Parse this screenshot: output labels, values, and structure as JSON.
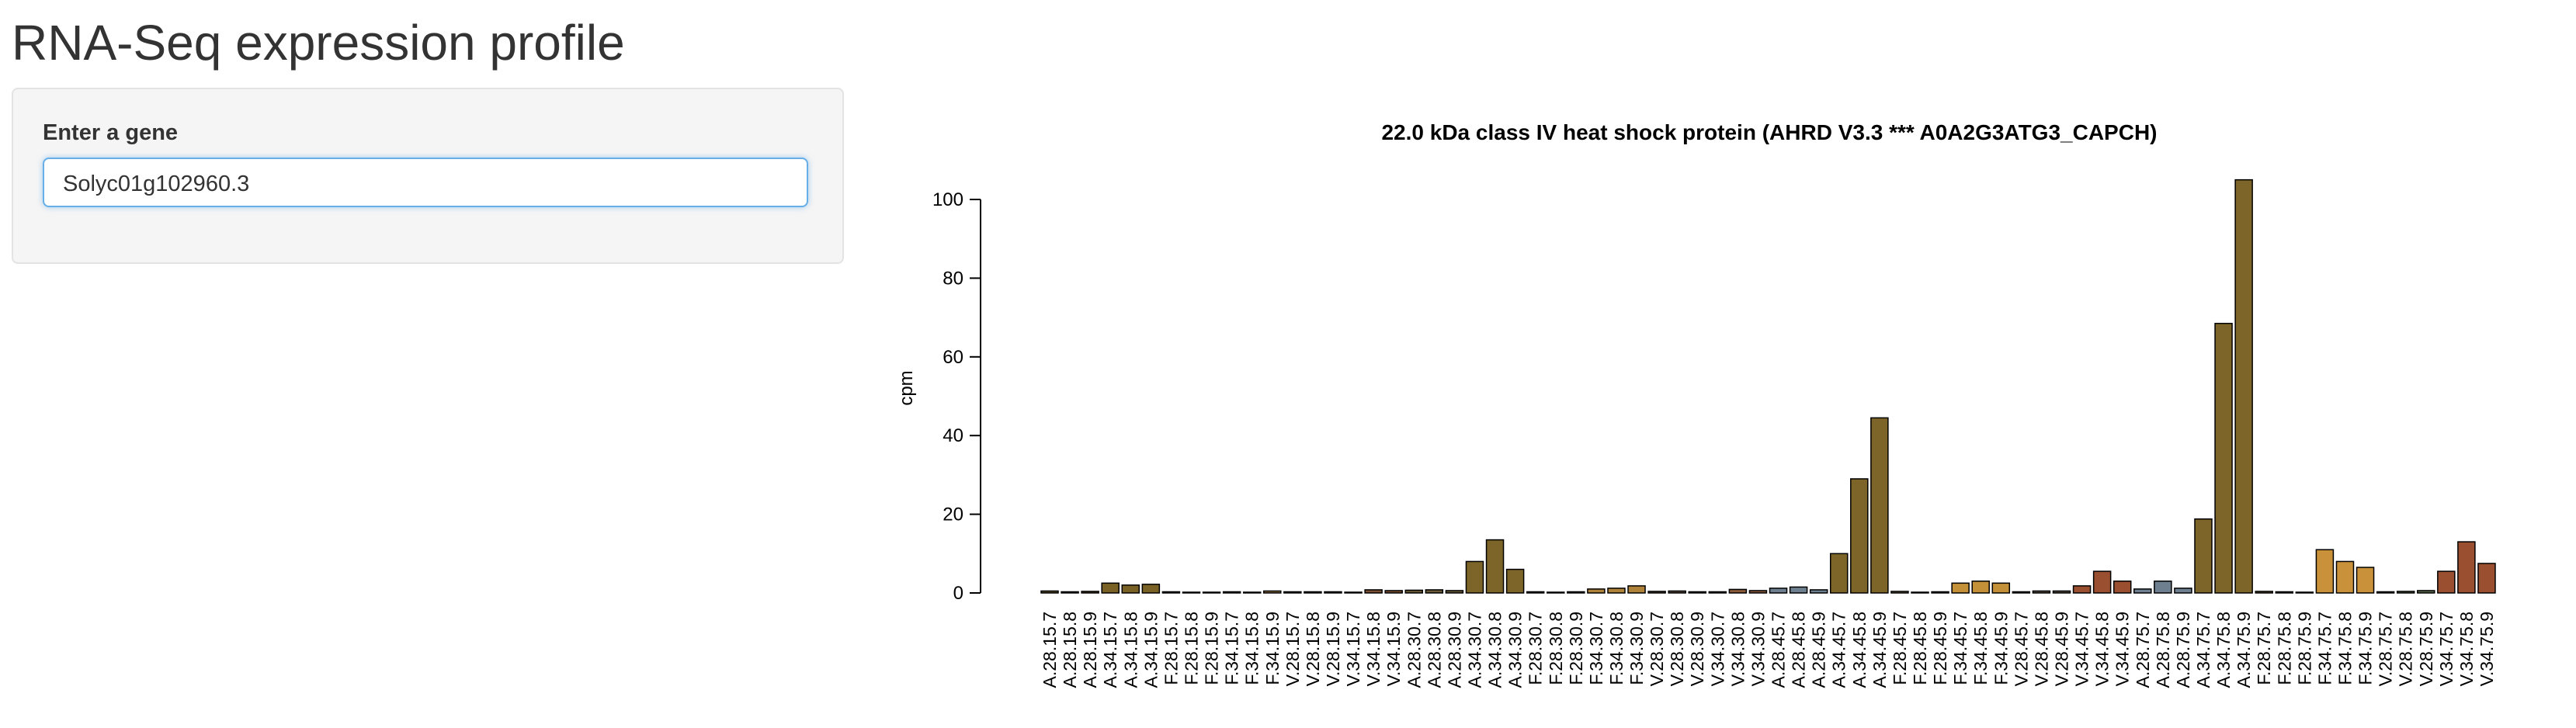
{
  "page": {
    "title": "RNA-Seq expression profile",
    "input_label": "Enter a gene",
    "input_value": "Solyc01g102960.3"
  },
  "chart_data": {
    "type": "bar",
    "title": "22.0 kDa class IV heat shock protein (AHRD V3.3 *** A0A2G3ATG3_CAPCH)",
    "y_label": "cpm",
    "categories": [
      "A.28.15.7",
      "A.28.15.8",
      "A.28.15.9",
      "A.34.15.7",
      "A.34.15.8",
      "A.34.15.9",
      "F.28.15.7",
      "F.28.15.8",
      "F.28.15.9",
      "F.34.15.7",
      "F.34.15.8",
      "F.34.15.9",
      "V.28.15.7",
      "V.28.15.8",
      "V.28.15.9",
      "V.34.15.7",
      "V.34.15.8",
      "V.34.15.9",
      "A.28.30.7",
      "A.28.30.8",
      "A.28.30.9",
      "A.34.30.7",
      "A.34.30.8",
      "A.34.30.9",
      "F.28.30.7",
      "F.28.30.8",
      "F.28.30.9",
      "F.34.30.7",
      "F.34.30.8",
      "F.34.30.9",
      "V.28.30.7",
      "V.28.30.8",
      "V.28.30.9",
      "V.34.30.7",
      "V.34.30.8",
      "V.34.30.9",
      "A.28.45.7",
      "A.28.45.8",
      "A.28.45.9",
      "A.34.45.7",
      "A.34.45.8",
      "A.34.45.9",
      "F.28.45.7",
      "F.28.45.8",
      "F.28.45.9",
      "F.34.45.7",
      "F.34.45.8",
      "F.34.45.9",
      "V.28.45.7",
      "V.28.45.8",
      "V.28.45.9",
      "V.34.45.7",
      "V.34.45.8",
      "V.34.45.9",
      "A.28.75.7",
      "A.28.75.8",
      "A.28.75.9",
      "A.34.75.7",
      "A.34.75.8",
      "A.34.75.9",
      "F.28.75.7",
      "F.28.75.8",
      "F.28.75.9",
      "F.34.75.7",
      "F.34.75.8",
      "F.34.75.9",
      "V.28.75.7",
      "V.28.75.8",
      "V.28.75.9",
      "V.34.75.7",
      "V.34.75.8",
      "V.34.75.9"
    ],
    "values": [
      0.5,
      0.3,
      0.4,
      2.5,
      2,
      2.2,
      0.3,
      0.2,
      0.2,
      0.3,
      0.2,
      0.5,
      0.3,
      0.3,
      0.3,
      0.2,
      0.8,
      0.6,
      0.7,
      0.8,
      0.6,
      8,
      13.5,
      6,
      0.3,
      0.2,
      0.3,
      1,
      1.2,
      1.8,
      0.4,
      0.5,
      0.3,
      0.3,
      0.9,
      0.6,
      1.2,
      1.5,
      0.8,
      10,
      29,
      44.5,
      0.4,
      0.2,
      0.3,
      2.5,
      3,
      2.5,
      0.3,
      0.5,
      0.5,
      1.8,
      5.5,
      3,
      1,
      3,
      1.2,
      18.8,
      68.5,
      105,
      0.4,
      0.3,
      0.2,
      11,
      8,
      6.5,
      0.3,
      0.4,
      0.6,
      5.5,
      13,
      7.5
    ],
    "colors": [
      "#5a4a28",
      "#5a4a28",
      "#5a4a28",
      "#7a6226",
      "#7a6226",
      "#7a6226",
      "#7c6d45",
      "#7c6d45",
      "#7c6d45",
      "#8b6f3a",
      "#8b6f3a",
      "#8b6f3a",
      "#5e4e36",
      "#5e4e36",
      "#5e4e36",
      "#7a5030",
      "#7a5030",
      "#7a5030",
      "#6a5a38",
      "#6a5a38",
      "#6a5a38",
      "#7d6428",
      "#7d6428",
      "#7d6428",
      "#8a8070",
      "#8a8070",
      "#8a8070",
      "#b0833a",
      "#b0833a",
      "#b0833a",
      "#5a4a38",
      "#5a4a38",
      "#5a4a38",
      "#8a5a3a",
      "#8a5a3a",
      "#8a5a3a",
      "#6e8090",
      "#6e8090",
      "#6e8090",
      "#7d6428",
      "#7d6428",
      "#7d6428",
      "#7a6a4a",
      "#7a6a4a",
      "#7a6a4a",
      "#c49038",
      "#c49038",
      "#c49038",
      "#5a5040",
      "#5a5040",
      "#5a5040",
      "#9a5030",
      "#9a5030",
      "#9a5030",
      "#6e8090",
      "#6e8090",
      "#6e8090",
      "#7d6428",
      "#7d6428",
      "#7d6428",
      "#6a5a3a",
      "#6a5a3a",
      "#6a5a3a",
      "#c8913a",
      "#c8913a",
      "#c8913a",
      "#5a6a4a",
      "#5a6a4a",
      "#5a6a4a",
      "#9a5030",
      "#9a5030",
      "#9a5030"
    ],
    "ylim": [
      0,
      100
    ],
    "yticks": [
      0,
      20,
      40,
      60,
      80,
      100
    ]
  }
}
